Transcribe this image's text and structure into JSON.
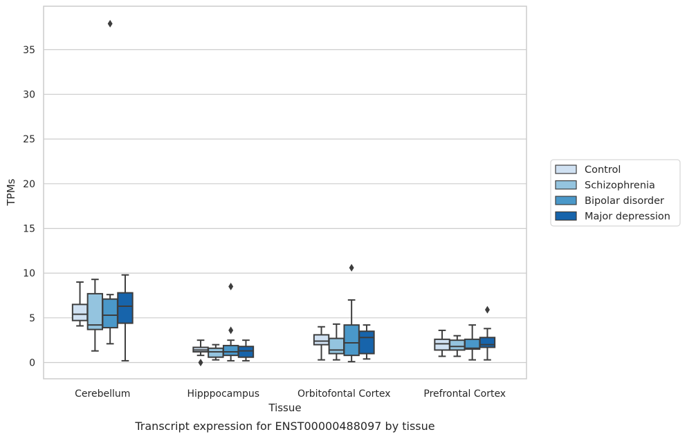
{
  "chart_data": {
    "type": "boxplot",
    "title": "Transcript expression for ENST00000488097 by tissue",
    "xlabel": "Tissue",
    "ylabel": "TPMs",
    "ylim": [
      -1.8,
      39.4
    ],
    "yticks": [
      0,
      5,
      10,
      15,
      20,
      25,
      30,
      35
    ],
    "grid": "horizontal",
    "legend_position": "right",
    "categories": [
      "Cerebellum",
      "Hipppocampus",
      "Orbitofontal Cortex",
      "Prefrontal Cortex"
    ],
    "series": [
      {
        "name": "Control",
        "color": "#d0e1f2",
        "boxes": [
          {
            "whisker_low": 4.1,
            "q1": 4.7,
            "median": 5.4,
            "q3": 6.5,
            "whisker_high": 9.0,
            "outliers": []
          },
          {
            "whisker_low": 0.8,
            "q1": 1.2,
            "median": 1.4,
            "q3": 1.7,
            "whisker_high": 2.5,
            "outliers": [
              0.0
            ]
          },
          {
            "whisker_low": 0.3,
            "q1": 2.0,
            "median": 2.4,
            "q3": 3.1,
            "whisker_high": 4.0,
            "outliers": []
          },
          {
            "whisker_low": 0.7,
            "q1": 1.4,
            "median": 2.1,
            "q3": 2.6,
            "whisker_high": 3.6,
            "outliers": []
          }
        ]
      },
      {
        "name": "Schizophrenia",
        "color": "#94c4df",
        "boxes": [
          {
            "whisker_low": 1.3,
            "q1": 3.7,
            "median": 4.2,
            "q3": 7.7,
            "whisker_high": 9.3,
            "outliers": []
          },
          {
            "whisker_low": 0.3,
            "q1": 0.6,
            "median": 1.2,
            "q3": 1.6,
            "whisker_high": 2.0,
            "outliers": []
          },
          {
            "whisker_low": 0.3,
            "q1": 1.0,
            "median": 1.4,
            "q3": 2.7,
            "whisker_high": 4.3,
            "outliers": []
          },
          {
            "whisker_low": 0.7,
            "q1": 1.4,
            "median": 1.8,
            "q3": 2.5,
            "whisker_high": 3.0,
            "outliers": []
          }
        ]
      },
      {
        "name": "Bipolar disorder",
        "color": "#4a98c9",
        "boxes": [
          {
            "whisker_low": 2.1,
            "q1": 3.9,
            "median": 5.3,
            "q3": 7.1,
            "whisker_high": 7.6,
            "outliers": [
              37.9
            ]
          },
          {
            "whisker_low": 0.2,
            "q1": 0.8,
            "median": 1.2,
            "q3": 1.9,
            "whisker_high": 2.5,
            "outliers": [
              8.5,
              3.6
            ]
          },
          {
            "whisker_low": 0.1,
            "q1": 0.8,
            "median": 2.2,
            "q3": 4.2,
            "whisker_high": 7.0,
            "outliers": [
              10.6
            ]
          },
          {
            "whisker_low": 0.3,
            "q1": 1.5,
            "median": 1.6,
            "q3": 2.6,
            "whisker_high": 4.2,
            "outliers": []
          }
        ]
      },
      {
        "name": "Major depression",
        "color": "#1764ab",
        "boxes": [
          {
            "whisker_low": 0.2,
            "q1": 4.4,
            "median": 6.3,
            "q3": 7.8,
            "whisker_high": 9.8,
            "outliers": []
          },
          {
            "whisker_low": 0.2,
            "q1": 0.6,
            "median": 1.3,
            "q3": 1.8,
            "whisker_high": 2.5,
            "outliers": []
          },
          {
            "whisker_low": 0.4,
            "q1": 1.0,
            "median": 2.8,
            "q3": 3.5,
            "whisker_high": 4.2,
            "outliers": []
          },
          {
            "whisker_low": 0.3,
            "q1": 1.7,
            "median": 2.0,
            "q3": 2.8,
            "whisker_high": 3.8,
            "outliers": [
              5.9
            ]
          }
        ]
      }
    ]
  }
}
